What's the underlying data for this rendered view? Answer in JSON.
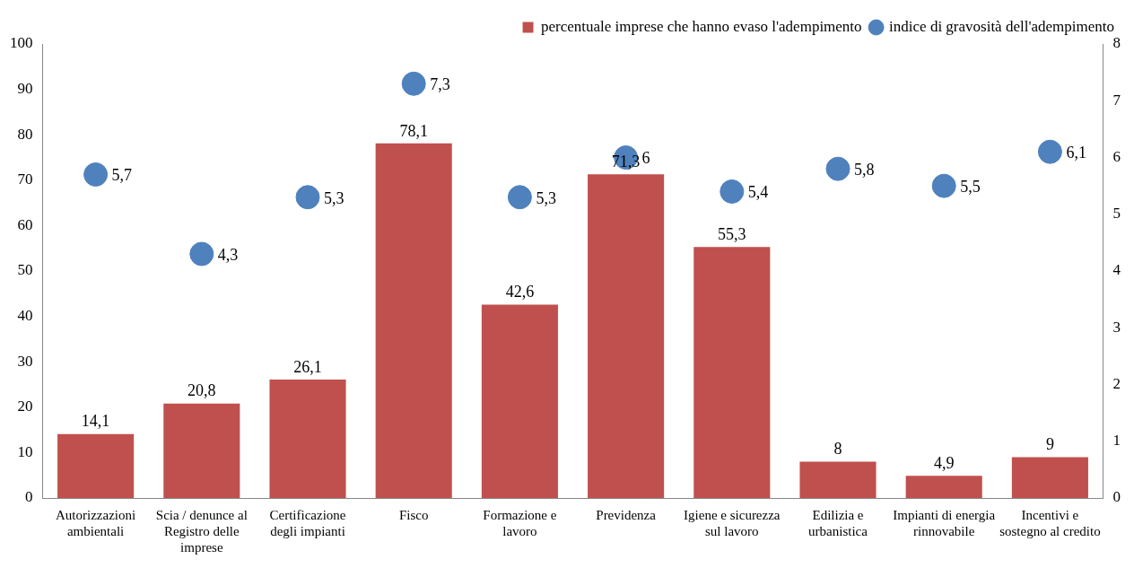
{
  "chart_data": {
    "type": "bar",
    "categories": [
      "Autorizzazioni ambientali",
      "Scia / denunce al Registro delle imprese",
      "Certificazione degli impianti",
      "Fisco",
      "Formazione e lavoro",
      "Previdenza",
      "Igiene e sicurezza sul lavoro",
      "Edilizia  e urbanistica",
      "Impianti di energia rinnovabile",
      "Incentivi e sostegno al credito"
    ],
    "series": [
      {
        "name": "percentuale imprese che hanno evaso l'adempimento",
        "color": "#c0504d",
        "values": [
          14.1,
          20.8,
          26.1,
          78.1,
          42.6,
          71.3,
          55.3,
          8,
          4.9,
          9
        ],
        "value_labels": [
          "14,1",
          "20,8",
          "26,1",
          "78,1",
          "42,6",
          "71,3",
          "55,3",
          "8",
          "4,9",
          "9"
        ]
      },
      {
        "name": "indice di gravosità dell'adempimento",
        "type": "scatter",
        "axis": "y2",
        "color": "#4f81bd",
        "values": [
          5.7,
          4.3,
          5.3,
          7.3,
          5.3,
          6,
          5.4,
          5.8,
          5.5,
          6.1
        ],
        "value_labels": [
          "5,7",
          "4,3",
          "5,3",
          "7,3",
          "5,3",
          "6",
          "5,4",
          "5,8",
          "5,5",
          "6,1"
        ]
      }
    ],
    "ylim": [
      0,
      100
    ],
    "yticks": [
      0,
      10,
      20,
      30,
      40,
      50,
      60,
      70,
      80,
      90,
      100
    ],
    "y2lim": [
      0,
      8
    ],
    "y2ticks": [
      0,
      1,
      2,
      3,
      4,
      5,
      6,
      7,
      8
    ],
    "legend": "top right",
    "grid": false,
    "marker": "circle"
  }
}
